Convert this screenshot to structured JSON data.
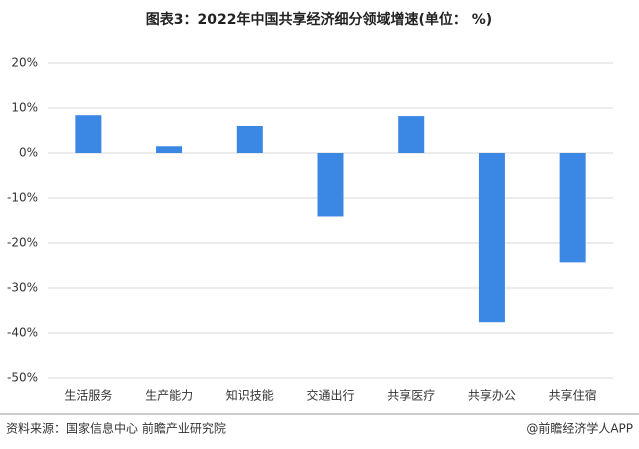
{
  "chart_data": {
    "type": "bar",
    "title": "图表3：2022年中国共享经济细分领域增速(单位： %)",
    "categories": [
      "生活服务",
      "生产能力",
      "知识技能",
      "交通出行",
      "共享医疗",
      "共享办公",
      "共享住宿"
    ],
    "values": [
      8.4,
      1.5,
      6.0,
      -14.1,
      8.2,
      -37.6,
      -24.3
    ],
    "color": "#3b87e4",
    "ylim": [
      -50,
      20
    ],
    "yticks": [
      {
        "value": -50,
        "label": "-50%"
      },
      {
        "value": -40,
        "label": "-40%"
      },
      {
        "value": -30,
        "label": "-30%"
      },
      {
        "value": -20,
        "label": "-20%"
      },
      {
        "value": -10,
        "label": "-10%"
      },
      {
        "value": 0,
        "label": "0%"
      },
      {
        "value": 10,
        "label": "10%"
      },
      {
        "value": 20,
        "label": "20%"
      }
    ],
    "grid": true,
    "source": "资料来源：国家信息中心 前瞻产业研究院",
    "credit": "@前瞻经济学人APP"
  }
}
